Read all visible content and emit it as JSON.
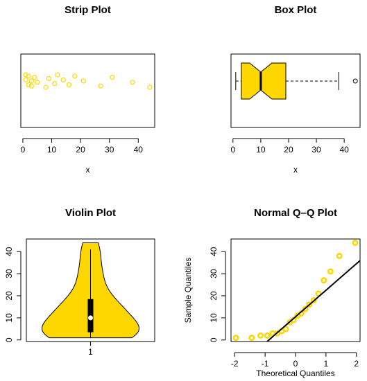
{
  "chart_data": [
    {
      "type": "strip",
      "title": "Strip Plot",
      "xlabel": "x",
      "values": [
        1,
        1,
        2,
        2,
        3,
        3,
        4,
        5,
        8,
        9,
        11,
        12,
        14,
        16,
        18,
        21,
        27,
        31,
        38,
        44
      ],
      "xlim": [
        -0.7,
        45.7
      ],
      "xticks": [
        0,
        10,
        20,
        30,
        40
      ],
      "color": "#ffd700"
    },
    {
      "type": "box",
      "title": "Box Plot",
      "xlabel": "x",
      "whisker_low": 1,
      "q1": 3,
      "median": 10,
      "q3": 19,
      "whisker_high": 38,
      "outliers": [
        44
      ],
      "notch": [
        6,
        14
      ],
      "xlim": [
        -0.7,
        45.7
      ],
      "xticks": [
        0,
        10,
        20,
        30,
        40
      ],
      "color": "#ffd700"
    },
    {
      "type": "violin",
      "title": "Violin Plot",
      "categories": [
        "1"
      ],
      "values": [
        1,
        1,
        2,
        2,
        3,
        3,
        4,
        5,
        8,
        9,
        11,
        12,
        14,
        16,
        18,
        21,
        27,
        31,
        38,
        44
      ],
      "whisker_low": 1,
      "q1": 3.5,
      "median": 10,
      "q3": 18.5,
      "whisker_high": 41,
      "ylim": [
        -0.7,
        45.7
      ],
      "yticks": [
        0,
        10,
        20,
        30,
        40
      ],
      "color": "#ffd700"
    },
    {
      "type": "qq",
      "title": "Normal Q–Q Plot",
      "xlabel": "Theoretical Quantiles",
      "ylabel": "Sample Quantiles",
      "x": [
        -1.96,
        -1.44,
        -1.15,
        -0.93,
        -0.755,
        -0.6,
        -0.454,
        -0.319,
        -0.189,
        -0.063,
        0.063,
        0.189,
        0.319,
        0.454,
        0.6,
        0.755,
        0.93,
        1.15,
        1.44,
        1.96
      ],
      "values": [
        1,
        1,
        2,
        2,
        3,
        3,
        4,
        5,
        8,
        9,
        11,
        12,
        14,
        16,
        18,
        21,
        27,
        31,
        38,
        44
      ],
      "line_intercept": 10.5,
      "line_slope": 12,
      "xlim": [
        -2.12,
        2.12
      ],
      "ylim": [
        -0.7,
        45.7
      ],
      "xticks": [
        -2,
        -1,
        0,
        1,
        2
      ],
      "yticks": [
        0,
        10,
        20,
        30,
        40
      ],
      "color": "#ffd700"
    }
  ]
}
